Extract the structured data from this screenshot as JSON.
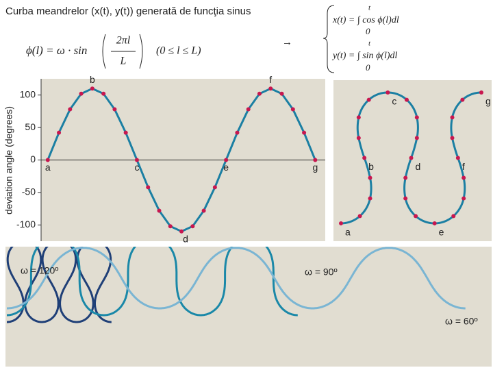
{
  "header": {
    "title": "Curba meandrelor (x(t), y(t)) generată de funcţia sinus"
  },
  "formula_phi": {
    "lhs": "ϕ(l) = ω · sin",
    "num": "2πl",
    "den": "L",
    "range": "(0 ≤ l ≤ L)"
  },
  "arrow": "→",
  "formula_xy": {
    "x": "x(t) = ∫ cos ϕ(l)dl",
    "y": "y(t) = ∫ sin ϕ(l)dl",
    "upper": "t",
    "lower": "0"
  },
  "chart_data": {
    "type": "line",
    "ylabel": "deviation angle (degrees)",
    "x": [
      0,
      1,
      2,
      3,
      4,
      5,
      6,
      7,
      8,
      9,
      10,
      11,
      12,
      13,
      14,
      15,
      16,
      17,
      18,
      19,
      20,
      21,
      22,
      23,
      24
    ],
    "series": [
      {
        "name": "deviation angle",
        "color": "#1b7fa3",
        "values": [
          0,
          42,
          78,
          102,
          110,
          102,
          78,
          42,
          0,
          -42,
          -78,
          -102,
          -110,
          -102,
          -78,
          -42,
          0,
          42,
          78,
          102,
          110,
          102,
          78,
          42,
          0
        ]
      }
    ],
    "point_labels": [
      "a",
      null,
      null,
      null,
      "b",
      null,
      null,
      null,
      "c",
      null,
      null,
      null,
      "d",
      null,
      null,
      null,
      "e",
      null,
      null,
      null,
      "f",
      null,
      null,
      null,
      "g"
    ],
    "marker_color": "#c8174f",
    "xlim": [
      -0.6,
      24.9
    ],
    "ylim": [
      -125,
      125
    ],
    "yticks": [
      -100,
      -50,
      0,
      50,
      100
    ]
  },
  "omega_curves": [
    {
      "label": "ω = 120º",
      "value": 120,
      "color": "#1f3f77"
    },
    {
      "label": "ω = 90º",
      "value": 90,
      "color": "#1a88a8"
    },
    {
      "label": "ω = 60º",
      "value": 60,
      "color": "#7ab5d3"
    }
  ]
}
